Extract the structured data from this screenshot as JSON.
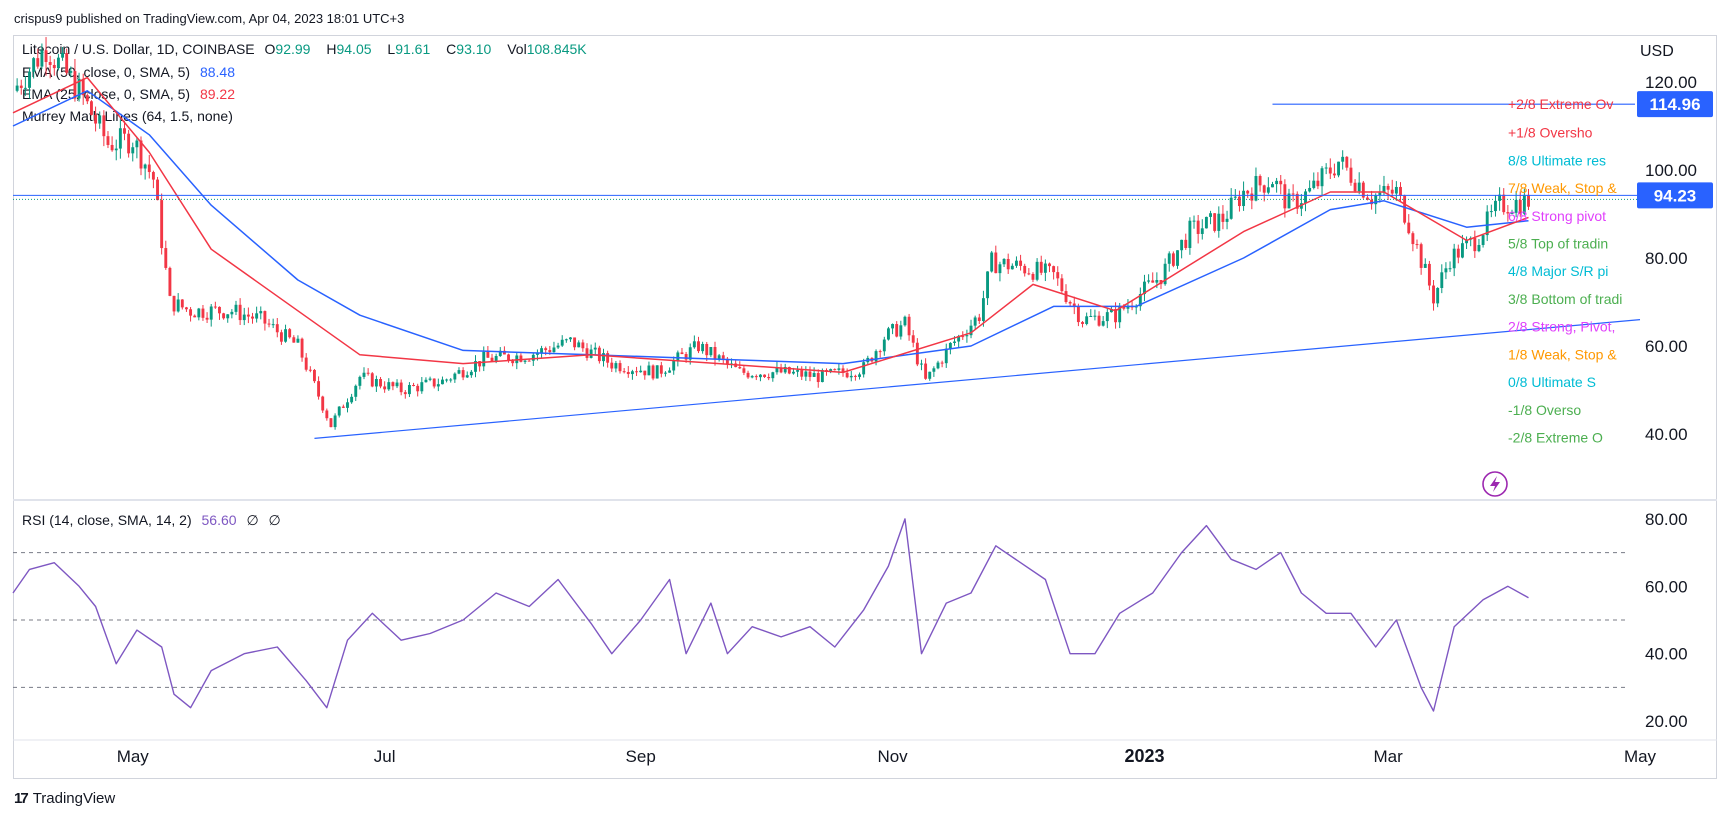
{
  "header": {
    "published": "crispus9 published on TradingView.com, Apr 04, 2023 18:01 UTC+3"
  },
  "legend": {
    "symbol": "Litecoin / U.S. Dollar, 1D, COINBASE",
    "o_label": "O",
    "o_value": "92.99",
    "h_label": "H",
    "h_value": "94.05",
    "l_label": "L",
    "l_value": "91.61",
    "c_label": "C",
    "c_value": "93.10",
    "vol_label": "Vol",
    "vol_value": "108.845K",
    "ema50_label": "EMA (50, close, 0, SMA, 5)",
    "ema50_value": "88.48",
    "ema25_label": "EMA (25, close, 0, SMA, 5)",
    "ema25_value": "89.22",
    "murrey_label": "Murrey Math Lines (64, 1.5, none)"
  },
  "rsi_legend": {
    "label": "RSI (14, close, SMA, 14, 2)",
    "value": "56.60",
    "extra1": "∅",
    "extra2": "∅"
  },
  "currency": "USD",
  "branding": {
    "name": "TradingView",
    "logo": "17"
  },
  "chart_data": [
    {
      "type": "candlestick",
      "ylim": [
        25,
        130
      ],
      "y_ticks": [
        "120.00",
        "100.00",
        "80.00",
        "60.00",
        "40.00"
      ],
      "y_tick_values": [
        120,
        100,
        80,
        60,
        40
      ],
      "x_ticks": [
        "May",
        "Jul",
        "Sep",
        "Nov",
        "2023",
        "Mar",
        "May"
      ],
      "x_tick_dates": [
        "2022-05-01",
        "2022-07-01",
        "2022-09-01",
        "2022-11-01",
        "2023-01-01",
        "2023-03-01",
        "2023-05-01"
      ],
      "x_range": [
        "2022-04-02",
        "2023-05-01"
      ],
      "price_path": [
        [
          "2022-04-02",
          118
        ],
        [
          "2022-04-10",
          128
        ],
        [
          "2022-04-18",
          118
        ],
        [
          "2022-04-25",
          106
        ],
        [
          "2022-05-01",
          107
        ],
        [
          "2022-05-06",
          98
        ],
        [
          "2022-05-10",
          70
        ],
        [
          "2022-05-15",
          68
        ],
        [
          "2022-05-25",
          68
        ],
        [
          "2022-06-01",
          66
        ],
        [
          "2022-06-10",
          60
        ],
        [
          "2022-06-18",
          42
        ],
        [
          "2022-06-25",
          53
        ],
        [
          "2022-07-05",
          50
        ],
        [
          "2022-07-15",
          52
        ],
        [
          "2022-07-25",
          57
        ],
        [
          "2022-08-05",
          58
        ],
        [
          "2022-08-15",
          61
        ],
        [
          "2022-08-25",
          56
        ],
        [
          "2022-09-05",
          54
        ],
        [
          "2022-09-15",
          60
        ],
        [
          "2022-09-25",
          54
        ],
        [
          "2022-10-05",
          54
        ],
        [
          "2022-10-15",
          53
        ],
        [
          "2022-10-25",
          55
        ],
        [
          "2022-10-30",
          62
        ],
        [
          "2022-11-04",
          65
        ],
        [
          "2022-11-09",
          52
        ],
        [
          "2022-11-15",
          60
        ],
        [
          "2022-11-22",
          67
        ],
        [
          "2022-11-25",
          79
        ],
        [
          "2022-12-02",
          78
        ],
        [
          "2022-12-10",
          76
        ],
        [
          "2022-12-17",
          66
        ],
        [
          "2022-12-25",
          67
        ],
        [
          "2023-01-05",
          76
        ],
        [
          "2023-01-12",
          86
        ],
        [
          "2023-01-20",
          89
        ],
        [
          "2023-01-25",
          95
        ],
        [
          "2023-02-01",
          98
        ],
        [
          "2023-02-05",
          92
        ],
        [
          "2023-02-10",
          95
        ],
        [
          "2023-02-17",
          102
        ],
        [
          "2023-02-25",
          94
        ],
        [
          "2023-03-03",
          95
        ],
        [
          "2023-03-06",
          88
        ],
        [
          "2023-03-12",
          71
        ],
        [
          "2023-03-16",
          80
        ],
        [
          "2023-03-22",
          84
        ],
        [
          "2023-03-28",
          92
        ],
        [
          "2023-04-04",
          93
        ]
      ],
      "ema50_path": [
        [
          "2022-04-02",
          110
        ],
        [
          "2022-04-20",
          118
        ],
        [
          "2022-05-05",
          108
        ],
        [
          "2022-05-20",
          92
        ],
        [
          "2022-06-10",
          75
        ],
        [
          "2022-06-25",
          67
        ],
        [
          "2022-07-20",
          59
        ],
        [
          "2022-08-20",
          58
        ],
        [
          "2022-09-20",
          57
        ],
        [
          "2022-10-20",
          56
        ],
        [
          "2022-11-20",
          60
        ],
        [
          "2022-12-10",
          69
        ],
        [
          "2022-12-30",
          69
        ],
        [
          "2023-01-25",
          80
        ],
        [
          "2023-02-15",
          91
        ],
        [
          "2023-02-28",
          93
        ],
        [
          "2023-03-20",
          87
        ],
        [
          "2023-04-04",
          88.48
        ]
      ],
      "ema25_path": [
        [
          "2022-04-02",
          113
        ],
        [
          "2022-04-20",
          121
        ],
        [
          "2022-05-05",
          104
        ],
        [
          "2022-05-20",
          82
        ],
        [
          "2022-06-10",
          68
        ],
        [
          "2022-06-25",
          58
        ],
        [
          "2022-07-20",
          56
        ],
        [
          "2022-08-20",
          58
        ],
        [
          "2022-09-20",
          56
        ],
        [
          "2022-10-20",
          54
        ],
        [
          "2022-11-20",
          63
        ],
        [
          "2022-12-05",
          74
        ],
        [
          "2022-12-25",
          68
        ],
        [
          "2023-01-25",
          86
        ],
        [
          "2023-02-15",
          95
        ],
        [
          "2023-02-28",
          95
        ],
        [
          "2023-03-20",
          84
        ],
        [
          "2023-04-04",
          89.22
        ]
      ],
      "trendline": [
        [
          "2022-06-14",
          39
        ],
        [
          "2023-05-01",
          66
        ]
      ],
      "resistance_line": {
        "from": "2023-02-01",
        "value": 114.96
      },
      "current_price": 94.23,
      "price_labels": [
        {
          "text": "114.96",
          "value": 114.96,
          "color": "#2962ff"
        },
        {
          "text": "94.23",
          "value": 94.23,
          "color": "#2962ff"
        }
      ],
      "murrey_labels": [
        {
          "text": "+2/8 Extreme Ov",
          "value": 115,
          "color": "#f23645"
        },
        {
          "text": "+1/8 Oversho",
          "value": 108.5,
          "color": "#f23645"
        },
        {
          "text": "8/8 Ultimate res",
          "value": 102.2,
          "color": "#00bcd4"
        },
        {
          "text": "7/8 Weak, Stop &",
          "value": 95.9,
          "color": "#ff9800"
        },
        {
          "text": "6/8 Strong pivot",
          "value": 89.6,
          "color": "#e040fb"
        },
        {
          "text": "5/8 Top of tradin",
          "value": 83.3,
          "color": "#4caf50"
        },
        {
          "text": "4/8 Major S/R pi",
          "value": 77,
          "color": "#00bcd4"
        },
        {
          "text": "3/8 Bottom of tradi",
          "value": 70.7,
          "color": "#4caf50"
        },
        {
          "text": "2/8 Strong, Pivot,",
          "value": 64.4,
          "color": "#e040fb"
        },
        {
          "text": "1/8 Weak, Stop &",
          "value": 58.1,
          "color": "#ff9800"
        },
        {
          "text": "0/8 Ultimate S",
          "value": 51.8,
          "color": "#00bcd4"
        },
        {
          "text": "-1/8 Overso",
          "value": 45.5,
          "color": "#4caf50"
        },
        {
          "text": "-2/8 Extreme O",
          "value": 39.2,
          "color": "#4caf50"
        }
      ]
    },
    {
      "type": "line",
      "name": "RSI",
      "ylim": [
        15,
        85
      ],
      "y_ticks": [
        "80.00",
        "60.00",
        "40.00",
        "20.00"
      ],
      "y_tick_values": [
        80,
        60,
        40,
        20
      ],
      "bands": [
        70,
        50,
        30
      ],
      "points": [
        [
          "2022-04-02",
          58
        ],
        [
          "2022-04-06",
          65
        ],
        [
          "2022-04-12",
          67
        ],
        [
          "2022-04-18",
          60
        ],
        [
          "2022-04-22",
          54
        ],
        [
          "2022-04-27",
          37
        ],
        [
          "2022-05-02",
          47
        ],
        [
          "2022-05-08",
          42
        ],
        [
          "2022-05-11",
          28
        ],
        [
          "2022-05-15",
          24
        ],
        [
          "2022-05-20",
          35
        ],
        [
          "2022-05-28",
          40
        ],
        [
          "2022-06-05",
          42
        ],
        [
          "2022-06-12",
          32
        ],
        [
          "2022-06-17",
          24
        ],
        [
          "2022-06-22",
          44
        ],
        [
          "2022-06-28",
          52
        ],
        [
          "2022-07-05",
          44
        ],
        [
          "2022-07-12",
          46
        ],
        [
          "2022-07-20",
          50
        ],
        [
          "2022-07-28",
          58
        ],
        [
          "2022-08-05",
          54
        ],
        [
          "2022-08-12",
          62
        ],
        [
          "2022-08-20",
          49
        ],
        [
          "2022-08-25",
          40
        ],
        [
          "2022-09-01",
          50
        ],
        [
          "2022-09-08",
          62
        ],
        [
          "2022-09-12",
          40
        ],
        [
          "2022-09-18",
          55
        ],
        [
          "2022-09-22",
          40
        ],
        [
          "2022-09-28",
          48
        ],
        [
          "2022-10-05",
          45
        ],
        [
          "2022-10-12",
          48
        ],
        [
          "2022-10-18",
          42
        ],
        [
          "2022-10-25",
          53
        ],
        [
          "2022-10-31",
          66
        ],
        [
          "2022-11-04",
          80
        ],
        [
          "2022-11-08",
          40
        ],
        [
          "2022-11-14",
          55
        ],
        [
          "2022-11-20",
          58
        ],
        [
          "2022-11-26",
          72
        ],
        [
          "2022-12-02",
          67
        ],
        [
          "2022-12-08",
          62
        ],
        [
          "2022-12-14",
          40
        ],
        [
          "2022-12-20",
          40
        ],
        [
          "2022-12-26",
          52
        ],
        [
          "2023-01-03",
          58
        ],
        [
          "2023-01-10",
          70
        ],
        [
          "2023-01-16",
          78
        ],
        [
          "2023-01-22",
          68
        ],
        [
          "2023-01-28",
          65
        ],
        [
          "2023-02-03",
          70
        ],
        [
          "2023-02-08",
          58
        ],
        [
          "2023-02-14",
          52
        ],
        [
          "2023-02-20",
          52
        ],
        [
          "2023-02-26",
          42
        ],
        [
          "2023-03-03",
          50
        ],
        [
          "2023-03-09",
          30
        ],
        [
          "2023-03-12",
          23
        ],
        [
          "2023-03-17",
          48
        ],
        [
          "2023-03-24",
          56
        ],
        [
          "2023-03-30",
          60
        ],
        [
          "2023-04-04",
          56.6
        ]
      ]
    }
  ]
}
